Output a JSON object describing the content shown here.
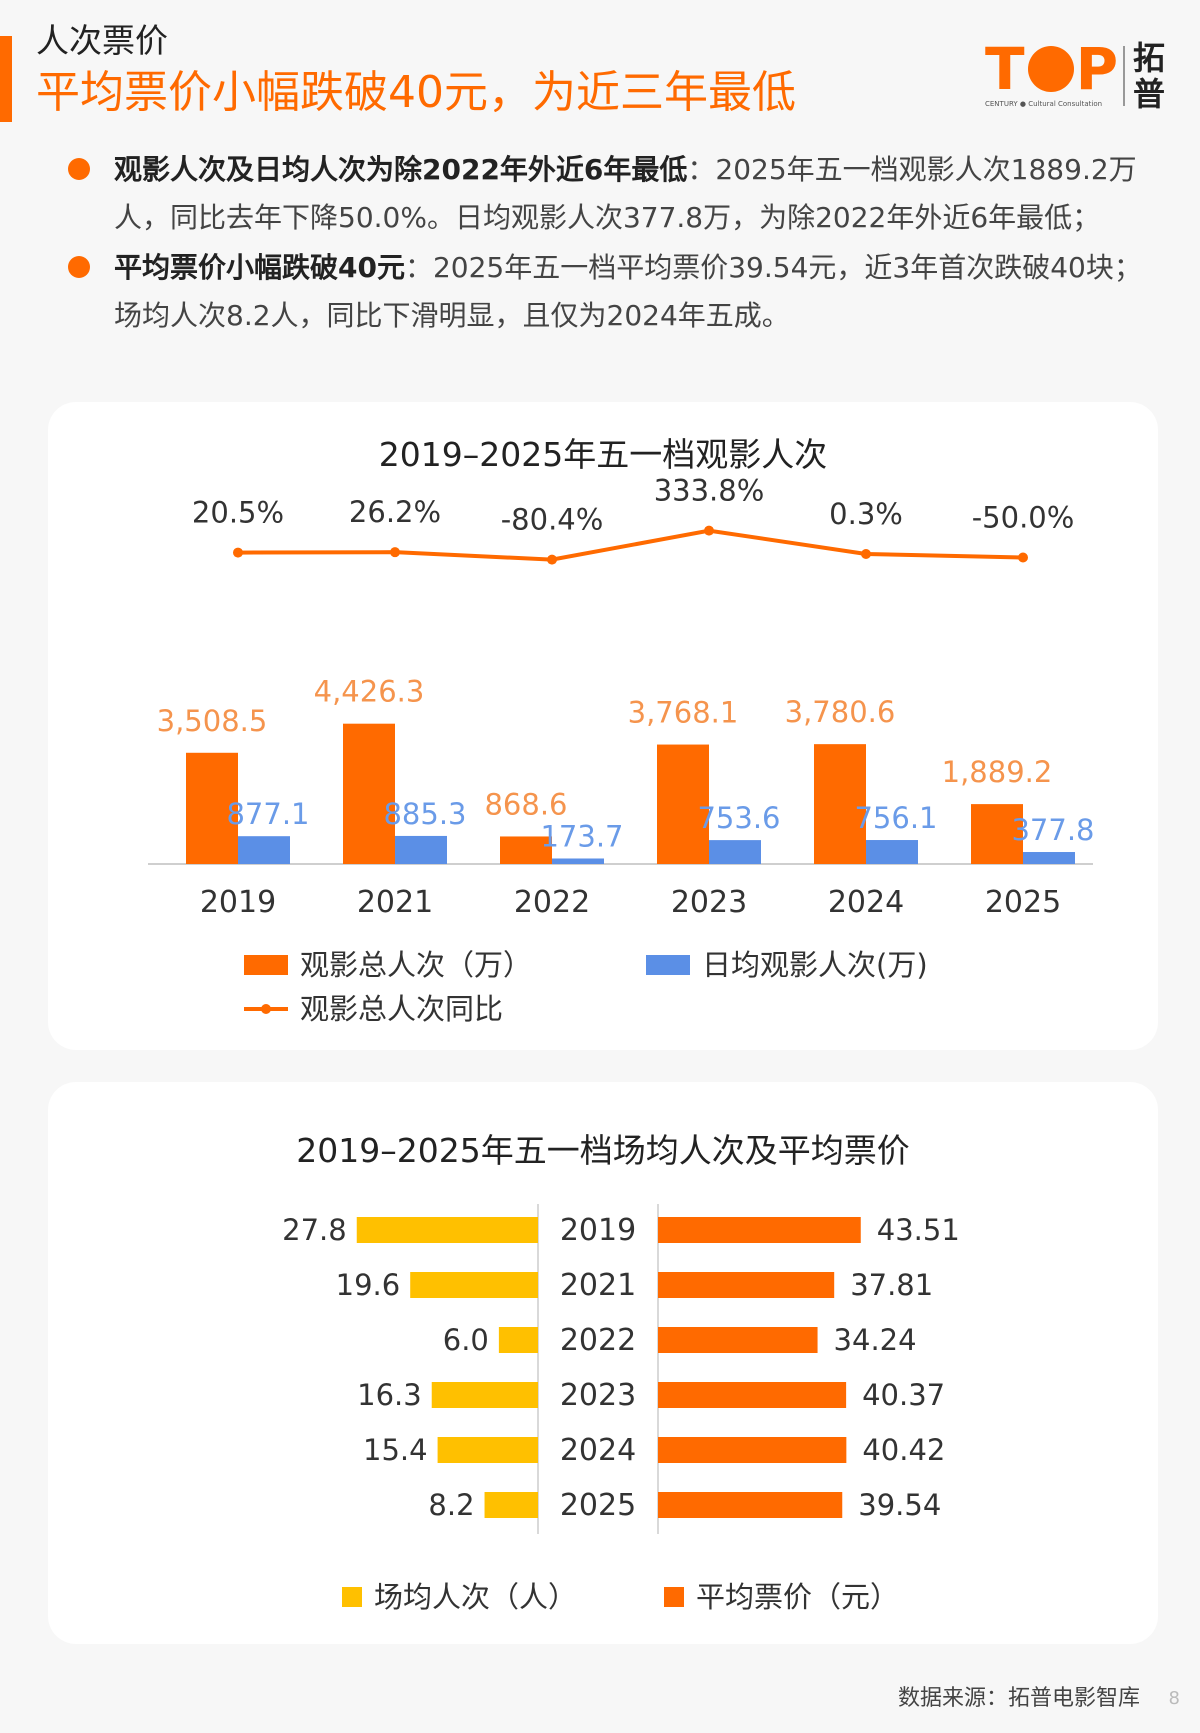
{
  "header": {
    "section_label": "人次票价",
    "headline": "平均票价小幅跌破40元，为近三年最低"
  },
  "logo": {
    "top_t": "T",
    "top_p": "P",
    "sub": "CENTURY ● Cultural Consultation",
    "cn_1": "拓",
    "cn_2": "普"
  },
  "bullets": [
    {
      "bold": "观影人次及日均人次为除2022年外近6年最低",
      "text": "：2025年五一档观影人次1889.2万人，同比去年下降50.0%。日均观影人次377.8万，为除2022年外近6年最低；"
    },
    {
      "bold": "平均票价小幅跌破40元",
      "text": "：2025年五一档平均票价39.54元，近3年首次跌破40块；场均人次8.2人，同比下滑明显，且仅为2024年五成。"
    }
  ],
  "colors": {
    "orange": "#ff6a00",
    "blue": "#5b8fe6",
    "yellow": "#ffc000",
    "label_orange": "#f5944d",
    "label_blue": "#6a9be8"
  },
  "chart_data": [
    {
      "type": "bar",
      "title": "2019–2025年五一档观影人次",
      "categories": [
        "2019",
        "2021",
        "2022",
        "2023",
        "2024",
        "2025"
      ],
      "series": [
        {
          "name": "观影总人次（万）",
          "kind": "bar",
          "values": [
            3508.5,
            4426.3,
            868.6,
            3768.1,
            3780.6,
            1889.2
          ],
          "labels": [
            "3,508.5",
            "4,426.3",
            "868.6",
            "3,768.1",
            "3,780.6",
            "1,889.2"
          ]
        },
        {
          "name": "日均观影人次(万)",
          "kind": "bar",
          "values": [
            877.1,
            885.3,
            173.7,
            753.6,
            756.1,
            377.8
          ],
          "labels": [
            "877.1",
            "885.3",
            "173.7",
            "753.6",
            "756.1",
            "377.8"
          ]
        },
        {
          "name": "观影总人次同比",
          "kind": "line",
          "values": [
            20.5,
            26.2,
            -80.4,
            333.8,
            0.3,
            -50.0
          ],
          "labels": [
            "20.5%",
            "26.2%",
            "-80.4%",
            "333.8%",
            "0.3%",
            "-50.0%"
          ]
        }
      ],
      "legend": [
        "观影总人次（万）",
        "日均观影人次(万)",
        "观影总人次同比"
      ],
      "legend_position": "bottom"
    },
    {
      "type": "bar",
      "orientation": "horizontal-butterfly",
      "title": "2019–2025年五一档场均人次及平均票价",
      "categories": [
        "2019",
        "2021",
        "2022",
        "2023",
        "2024",
        "2025"
      ],
      "series": [
        {
          "name": "场均人次（人）",
          "values": [
            27.8,
            19.6,
            6.0,
            16.3,
            15.4,
            8.2
          ],
          "labels": [
            "27.8",
            "19.6",
            "6.0",
            "16.3",
            "15.4",
            "8.2"
          ]
        },
        {
          "name": "平均票价（元）",
          "values": [
            43.51,
            37.81,
            34.24,
            40.37,
            40.42,
            39.54
          ],
          "labels": [
            "43.51",
            "37.81",
            "34.24",
            "40.37",
            "40.42",
            "39.54"
          ]
        }
      ],
      "legend": [
        "场均人次（人）",
        "平均票价（元）"
      ],
      "legend_position": "bottom"
    }
  ],
  "footer": {
    "source": "数据来源：拓普电影智库",
    "page": "8"
  }
}
